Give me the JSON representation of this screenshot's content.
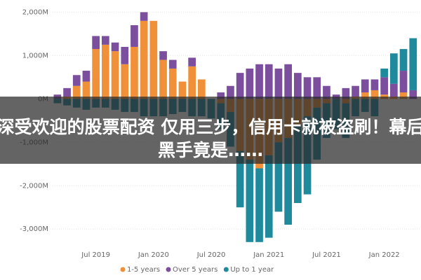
{
  "chart_data": {
    "type": "stacked-bar",
    "categories": [
      null,
      null,
      null,
      null,
      "Jul 2019",
      null,
      null,
      null,
      null,
      null,
      "Jan 2020",
      null,
      null,
      null,
      null,
      null,
      "Jul 2020",
      null,
      null,
      null,
      null,
      null,
      "Jan 2021",
      null,
      null,
      null,
      null,
      null,
      "Jul 2021",
      null,
      null,
      null,
      null,
      null,
      "Jan 2022",
      null,
      null,
      null
    ],
    "series": [
      {
        "name": "1-5 years",
        "color": "#f0913a",
        "values": [
          0,
          50,
          300,
          400,
          1150,
          1250,
          1100,
          800,
          1200,
          1800,
          1800,
          900,
          700,
          400,
          750,
          450,
          0,
          -100,
          -300,
          -1200,
          -1400,
          -1600,
          -1300,
          -1000,
          -900,
          -600,
          -400,
          -200,
          -100,
          0,
          -100,
          50,
          150,
          200,
          100,
          50,
          150,
          0
        ]
      },
      {
        "name": "Over 5 years",
        "color": "#7b4f9d",
        "values": [
          100,
          200,
          250,
          250,
          300,
          200,
          200,
          400,
          500,
          200,
          0,
          200,
          200,
          0,
          200,
          0,
          0,
          150,
          300,
          600,
          700,
          800,
          800,
          700,
          800,
          600,
          500,
          500,
          300,
          100,
          250,
          250,
          300,
          250,
          400,
          300,
          500,
          200
        ]
      },
      {
        "name": "Up to 1 year",
        "color": "#1e8a9c",
        "values": [
          -100,
          -150,
          -200,
          -250,
          -200,
          -200,
          -250,
          -300,
          -300,
          -400,
          -400,
          -400,
          -350,
          -300,
          -400,
          -400,
          -450,
          -600,
          -800,
          -1300,
          -1900,
          -1700,
          -1900,
          -1600,
          -2000,
          -1800,
          -1800,
          -1200,
          -800,
          -700,
          -800,
          -400,
          -300,
          -400,
          200,
          700,
          500,
          1200
        ]
      }
    ],
    "ylim": [
      -3400,
      2200
    ],
    "yticks": [
      {
        "value": 2000,
        "label": "2,000M"
      },
      {
        "value": 1000,
        "label": "1,000M"
      },
      {
        "value": 0,
        "label": "0M"
      },
      {
        "value": -1000,
        "label": "-1,000M"
      },
      {
        "value": -2000,
        "label": "-2,000M"
      },
      {
        "value": -3000,
        "label": "-3,000M"
      }
    ],
    "grid": true,
    "legend": "bottom"
  },
  "banner": {
    "lines": [
      "深受欢迎的股票配资 仅用三步，信用卡就被盗刷！幕后",
      "黑手竟是……"
    ]
  }
}
